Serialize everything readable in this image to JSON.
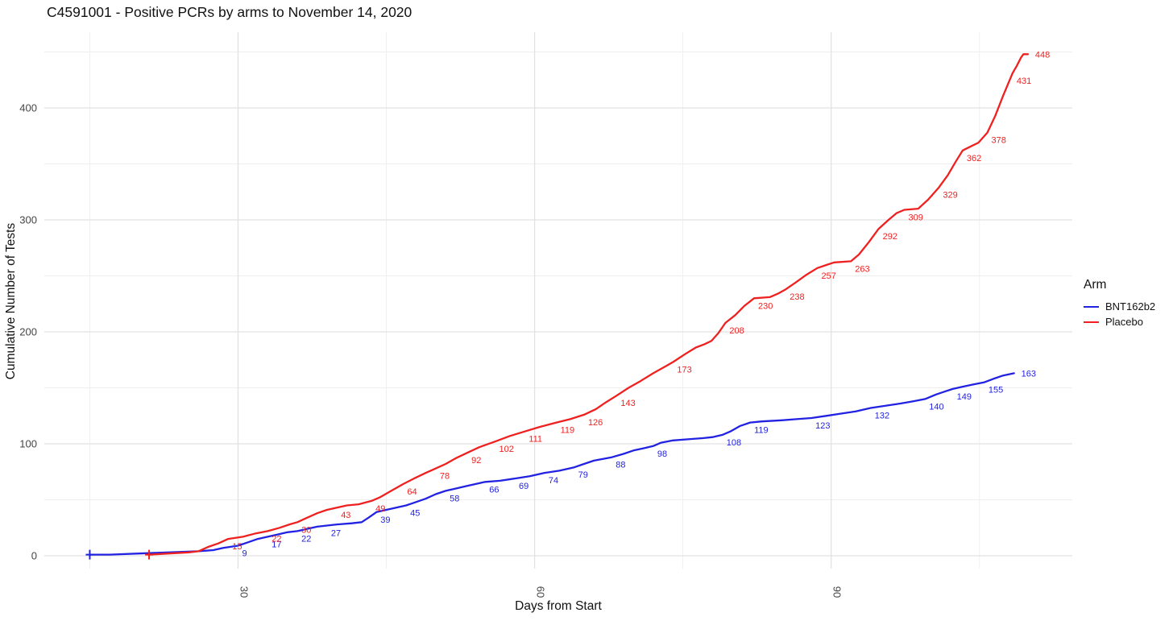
{
  "title": "C4591001 - Positive PCRs by arms to November 14, 2020",
  "x_axis": {
    "label": "Days from Start",
    "ticks": [
      30,
      60,
      90
    ],
    "minor_ticks": [
      15,
      45,
      75,
      105
    ]
  },
  "y_axis": {
    "label": "Cumulative Number of Tests",
    "ticks": [
      0,
      100,
      200,
      300,
      400
    ],
    "minor_ticks": [
      50,
      150,
      250,
      350,
      450
    ]
  },
  "legend": {
    "title": "Arm",
    "entries": [
      {
        "label": "BNT162b2",
        "color": "#2222e2"
      },
      {
        "label": "Placebo",
        "color": "#ef2020"
      }
    ]
  },
  "colors": {
    "grid_major": "#e2e2e2",
    "grid_minor": "#eeeeee",
    "tick_text": "#454545",
    "background": "#ffffff"
  },
  "chart_data": {
    "type": "line",
    "title": "C4591001 - Positive PCRs by arms to November 14, 2020",
    "xlabel": "Days from Start",
    "ylabel": "Cumulative Number of Tests",
    "xlim": [
      10.4,
      114.4
    ],
    "ylim": [
      -11.5,
      467
    ],
    "grid": true,
    "legend_position": "right",
    "series": [
      {
        "name": "BNT162b2",
        "color": "#2222e2",
        "start_marker": {
          "shape": "plus",
          "day": 15,
          "value": 1
        },
        "labeled_points": [
          {
            "day": 30,
            "count": 9
          },
          {
            "day": 33,
            "count": 17
          },
          {
            "day": 36,
            "count": 22
          },
          {
            "day": 39,
            "count": 27
          },
          {
            "day": 44,
            "count": 39
          },
          {
            "day": 47,
            "count": 45
          },
          {
            "day": 51,
            "count": 58
          },
          {
            "day": 55,
            "count": 66
          },
          {
            "day": 58,
            "count": 69
          },
          {
            "day": 61,
            "count": 74
          },
          {
            "day": 64,
            "count": 79
          },
          {
            "day": 67.8,
            "count": 88
          },
          {
            "day": 72,
            "count": 98
          },
          {
            "day": 79,
            "count": 108
          },
          {
            "day": 81.8,
            "count": 119
          },
          {
            "day": 88,
            "count": 123
          },
          {
            "day": 94,
            "count": 132
          },
          {
            "day": 99.5,
            "count": 140
          },
          {
            "day": 102.3,
            "count": 149
          },
          {
            "day": 105.5,
            "count": 155
          },
          {
            "day": 108.5,
            "count": 163
          }
        ],
        "points": [
          [
            15,
            1
          ],
          [
            17,
            1
          ],
          [
            20,
            2
          ],
          [
            23,
            3
          ],
          [
            26,
            4
          ],
          [
            27.5,
            5
          ],
          [
            28.5,
            7
          ],
          [
            30,
            9
          ],
          [
            31,
            12
          ],
          [
            32,
            15
          ],
          [
            33,
            17
          ],
          [
            34,
            19
          ],
          [
            35,
            21
          ],
          [
            36,
            22
          ],
          [
            37,
            24
          ],
          [
            38,
            26
          ],
          [
            39,
            27
          ],
          [
            40,
            28
          ],
          [
            41.5,
            29
          ],
          [
            42.5,
            30
          ],
          [
            43.2,
            34
          ],
          [
            44,
            39
          ],
          [
            45,
            41
          ],
          [
            46,
            43
          ],
          [
            47,
            45
          ],
          [
            48,
            48
          ],
          [
            49,
            51
          ],
          [
            50,
            55
          ],
          [
            51,
            58
          ],
          [
            52,
            60
          ],
          [
            53,
            62
          ],
          [
            54,
            64
          ],
          [
            55,
            66
          ],
          [
            56.5,
            67
          ],
          [
            58,
            69
          ],
          [
            59.5,
            71
          ],
          [
            61,
            74
          ],
          [
            62.5,
            76
          ],
          [
            64,
            79
          ],
          [
            65,
            82
          ],
          [
            66,
            85
          ],
          [
            67.8,
            88
          ],
          [
            69,
            91
          ],
          [
            70,
            94
          ],
          [
            71,
            96
          ],
          [
            72,
            98
          ],
          [
            72.8,
            101
          ],
          [
            74,
            103
          ],
          [
            75.5,
            104
          ],
          [
            77,
            105
          ],
          [
            78,
            106
          ],
          [
            79,
            108
          ],
          [
            79.8,
            111
          ],
          [
            80.8,
            116
          ],
          [
            81.8,
            119
          ],
          [
            83,
            120
          ],
          [
            85,
            121
          ],
          [
            86.5,
            122
          ],
          [
            88,
            123
          ],
          [
            89.5,
            125
          ],
          [
            91,
            127
          ],
          [
            92.5,
            129
          ],
          [
            94,
            132
          ],
          [
            95.5,
            134
          ],
          [
            97,
            136
          ],
          [
            98.3,
            138
          ],
          [
            99.5,
            140
          ],
          [
            100.6,
            144
          ],
          [
            101.6,
            147
          ],
          [
            102.3,
            149
          ],
          [
            103.3,
            151
          ],
          [
            104.4,
            153
          ],
          [
            105.5,
            155
          ],
          [
            106.4,
            158
          ],
          [
            107.4,
            161
          ],
          [
            108.5,
            163
          ]
        ]
      },
      {
        "name": "Placebo",
        "color": "#ef2020",
        "start_marker": {
          "shape": "plus",
          "day": 21,
          "value": 1
        },
        "labeled_points": [
          {
            "day": 29,
            "count": 15
          },
          {
            "day": 33,
            "count": 22
          },
          {
            "day": 36,
            "count": 30
          },
          {
            "day": 40,
            "count": 43
          },
          {
            "day": 43.5,
            "count": 49
          },
          {
            "day": 46.7,
            "count": 64
          },
          {
            "day": 50,
            "count": 78
          },
          {
            "day": 53.2,
            "count": 92
          },
          {
            "day": 56,
            "count": 102
          },
          {
            "day": 59,
            "count": 111
          },
          {
            "day": 62.2,
            "count": 119
          },
          {
            "day": 65,
            "count": 126
          },
          {
            "day": 68.3,
            "count": 143
          },
          {
            "day": 74,
            "count": 173
          },
          {
            "day": 79.3,
            "count": 208
          },
          {
            "day": 82.2,
            "count": 230
          },
          {
            "day": 85.4,
            "count": 238
          },
          {
            "day": 88.6,
            "count": 257
          },
          {
            "day": 92,
            "count": 263
          },
          {
            "day": 94.8,
            "count": 292
          },
          {
            "day": 97.4,
            "count": 309
          },
          {
            "day": 100.9,
            "count": 329
          },
          {
            "day": 103.3,
            "count": 362
          },
          {
            "day": 105.8,
            "count": 378
          },
          {
            "day": 108.35,
            "count": 431
          },
          {
            "day": 109.9,
            "count": 448
          }
        ],
        "points": [
          [
            21,
            1
          ],
          [
            23,
            2
          ],
          [
            25,
            3
          ],
          [
            26,
            4
          ],
          [
            27,
            8
          ],
          [
            28,
            11
          ],
          [
            29,
            15
          ],
          [
            30.5,
            17
          ],
          [
            31.8,
            20
          ],
          [
            33,
            22
          ],
          [
            34.2,
            25
          ],
          [
            35.2,
            28
          ],
          [
            36,
            30
          ],
          [
            37,
            34
          ],
          [
            38,
            38
          ],
          [
            39,
            41
          ],
          [
            40,
            43
          ],
          [
            41,
            45
          ],
          [
            42.2,
            46
          ],
          [
            43.5,
            49
          ],
          [
            44.3,
            52
          ],
          [
            45.3,
            57
          ],
          [
            46.7,
            64
          ],
          [
            47.8,
            69
          ],
          [
            49,
            74
          ],
          [
            50,
            78
          ],
          [
            51,
            82
          ],
          [
            52,
            87
          ],
          [
            53.2,
            92
          ],
          [
            54.4,
            97
          ],
          [
            56,
            102
          ],
          [
            57.5,
            107
          ],
          [
            59,
            111
          ],
          [
            60.5,
            115
          ],
          [
            62.2,
            119
          ],
          [
            63.6,
            122
          ],
          [
            65,
            126
          ],
          [
            66.2,
            131
          ],
          [
            67.2,
            137
          ],
          [
            68.3,
            143
          ],
          [
            69.5,
            150
          ],
          [
            70.7,
            156
          ],
          [
            72,
            163
          ],
          [
            73,
            168
          ],
          [
            74,
            173
          ],
          [
            75.2,
            180
          ],
          [
            76.3,
            186
          ],
          [
            77.2,
            189
          ],
          [
            77.9,
            192
          ],
          [
            78.6,
            199
          ],
          [
            79.3,
            208
          ],
          [
            80.3,
            215
          ],
          [
            81.2,
            223
          ],
          [
            82.2,
            230
          ],
          [
            83.8,
            231
          ],
          [
            84.6,
            234
          ],
          [
            85.4,
            238
          ],
          [
            86.4,
            244
          ],
          [
            87.5,
            251
          ],
          [
            88.6,
            257
          ],
          [
            89.6,
            260
          ],
          [
            90.3,
            262
          ],
          [
            92,
            263
          ],
          [
            92.8,
            269
          ],
          [
            93.8,
            280
          ],
          [
            94.8,
            292
          ],
          [
            95.8,
            300
          ],
          [
            96.6,
            306
          ],
          [
            97.4,
            309
          ],
          [
            98.8,
            310
          ],
          [
            99.8,
            318
          ],
          [
            100.9,
            329
          ],
          [
            101.8,
            340
          ],
          [
            102.6,
            352
          ],
          [
            103.3,
            362
          ],
          [
            104.2,
            366
          ],
          [
            104.9,
            369
          ],
          [
            105.8,
            378
          ],
          [
            106.6,
            393
          ],
          [
            107.4,
            411
          ],
          [
            108.35,
            431
          ],
          [
            108.8,
            438
          ],
          [
            109.2,
            445
          ],
          [
            109.45,
            448
          ],
          [
            109.9,
            448
          ]
        ]
      }
    ]
  }
}
